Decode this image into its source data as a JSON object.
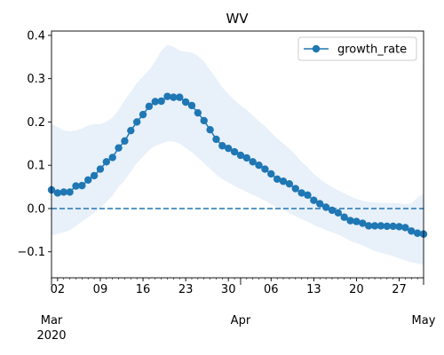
{
  "chart_data": {
    "type": "line",
    "title": "WV",
    "xlabel": "",
    "ylabel": "",
    "x_range": [
      "2020-03-01",
      "2020-05-01"
    ],
    "ylim": [
      -0.16,
      0.41
    ],
    "grid": false,
    "legend_position": "top-right",
    "x_major_ticks": [
      {
        "date": "2020-03-01",
        "label": "Mar",
        "sublabel": "2020"
      },
      {
        "date": "2020-04-01",
        "label": "Apr",
        "sublabel": ""
      },
      {
        "date": "2020-05-01",
        "label": "May",
        "sublabel": ""
      }
    ],
    "x_minor_ticks": [
      {
        "date": "2020-03-02",
        "label": "02"
      },
      {
        "date": "2020-03-09",
        "label": "09"
      },
      {
        "date": "2020-03-16",
        "label": "16"
      },
      {
        "date": "2020-03-23",
        "label": "23"
      },
      {
        "date": "2020-03-30",
        "label": "30"
      },
      {
        "date": "2020-04-06",
        "label": "06"
      },
      {
        "date": "2020-04-13",
        "label": "13"
      },
      {
        "date": "2020-04-20",
        "label": "20"
      },
      {
        "date": "2020-04-27",
        "label": "27"
      }
    ],
    "y_ticks": [
      -0.1,
      0.0,
      0.1,
      0.2,
      0.3,
      0.4
    ],
    "y_tick_labels": [
      "−0.1",
      "0.0",
      "0.1",
      "0.2",
      "0.3",
      "0.4"
    ],
    "reference_line": {
      "y": 0.0,
      "style": "dashed",
      "color": "#1f77b4"
    },
    "series": [
      {
        "name": "growth_rate",
        "color": "#1f77b4",
        "marker": "circle",
        "band_color": "#e8f0fa",
        "start_date": "2020-03-01",
        "values": [
          0.043,
          0.036,
          0.038,
          0.038,
          0.052,
          0.053,
          0.066,
          0.076,
          0.091,
          0.108,
          0.118,
          0.14,
          0.156,
          0.18,
          0.2,
          0.217,
          0.236,
          0.247,
          0.248,
          0.259,
          0.257,
          0.257,
          0.246,
          0.238,
          0.221,
          0.203,
          0.182,
          0.16,
          0.145,
          0.139,
          0.131,
          0.123,
          0.117,
          0.108,
          0.1,
          0.091,
          0.08,
          0.068,
          0.063,
          0.057,
          0.046,
          0.036,
          0.031,
          0.019,
          0.011,
          0.003,
          -0.004,
          -0.01,
          -0.02,
          -0.028,
          -0.03,
          -0.034,
          -0.04,
          -0.04,
          -0.04,
          -0.041,
          -0.041,
          -0.042,
          -0.044,
          -0.052,
          -0.057,
          -0.059
        ],
        "lower": [
          -0.062,
          -0.058,
          -0.055,
          -0.05,
          -0.04,
          -0.03,
          -0.02,
          -0.01,
          0.0,
          0.015,
          0.03,
          0.05,
          0.065,
          0.085,
          0.105,
          0.12,
          0.135,
          0.145,
          0.15,
          0.155,
          0.155,
          0.15,
          0.14,
          0.13,
          0.118,
          0.105,
          0.092,
          0.078,
          0.068,
          0.06,
          0.052,
          0.045,
          0.038,
          0.032,
          0.025,
          0.018,
          0.01,
          0.002,
          -0.004,
          -0.01,
          -0.018,
          -0.025,
          -0.03,
          -0.038,
          -0.044,
          -0.05,
          -0.055,
          -0.06,
          -0.067,
          -0.075,
          -0.08,
          -0.085,
          -0.092,
          -0.098,
          -0.102,
          -0.106,
          -0.11,
          -0.115,
          -0.12,
          -0.124,
          -0.127,
          -0.13
        ],
        "upper": [
          0.195,
          0.188,
          0.18,
          0.178,
          0.18,
          0.185,
          0.192,
          0.195,
          0.195,
          0.2,
          0.21,
          0.228,
          0.25,
          0.27,
          0.29,
          0.305,
          0.32,
          0.34,
          0.365,
          0.378,
          0.374,
          0.365,
          0.362,
          0.36,
          0.352,
          0.34,
          0.32,
          0.3,
          0.28,
          0.265,
          0.25,
          0.238,
          0.228,
          0.215,
          0.202,
          0.19,
          0.175,
          0.162,
          0.15,
          0.138,
          0.124,
          0.108,
          0.095,
          0.08,
          0.068,
          0.058,
          0.05,
          0.042,
          0.035,
          0.028,
          0.022,
          0.018,
          0.015,
          0.014,
          0.013,
          0.013,
          0.013,
          0.012,
          0.01,
          0.012,
          0.025,
          0.035
        ]
      }
    ]
  }
}
